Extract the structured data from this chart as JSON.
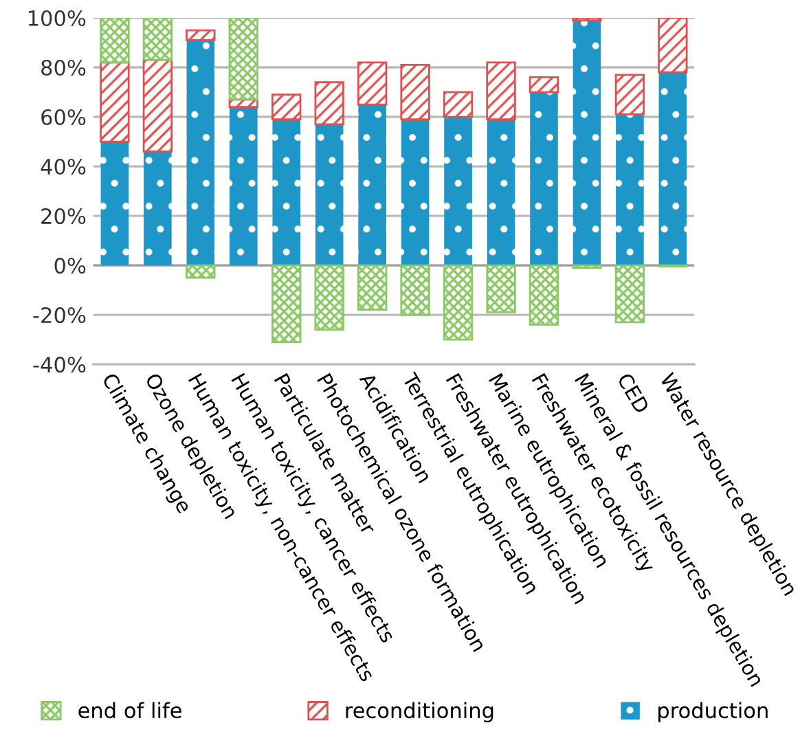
{
  "chart_data": {
    "type": "bar",
    "stacked": true,
    "categories": [
      "Climate change",
      "Ozone depletion",
      "Human toxicity, non-cancer effects",
      "Human toxicity, cancer effects",
      "Particulate matter",
      "Photochemical ozone formation",
      "Acidification",
      "Terrestrial eutrophication",
      "Freshwater eutrophication",
      "Marine eutrophication",
      "Freshwater ecotoxicity",
      "Mineral & fossil resources depletion",
      "CED",
      "Water resource depletion"
    ],
    "series": [
      {
        "name": "production",
        "color": "#1f96c8",
        "values": [
          50,
          46,
          91,
          64,
          59,
          57,
          65,
          59,
          60,
          59,
          70,
          99,
          61,
          78
        ]
      },
      {
        "name": "reconditioning",
        "color": "#e05050",
        "values": [
          32,
          37,
          4,
          3,
          10,
          17,
          17,
          22,
          10,
          23,
          6,
          1,
          16,
          22
        ]
      },
      {
        "name": "end of life",
        "color": "#8cc868",
        "values": [
          18,
          17,
          -5,
          33,
          -31,
          -26,
          -18,
          -20,
          -30,
          -19,
          -24,
          -1,
          -23,
          -0.5
        ]
      }
    ],
    "ylim": [
      -40,
      100
    ],
    "yticks": [
      {
        "value": -40,
        "label": "-40%"
      },
      {
        "value": -20,
        "label": "-20%"
      },
      {
        "value": 0,
        "label": "0%"
      },
      {
        "value": 20,
        "label": "20%"
      },
      {
        "value": 40,
        "label": "40%"
      },
      {
        "value": 60,
        "label": "60%"
      },
      {
        "value": 80,
        "label": "80%"
      },
      {
        "value": 100,
        "label": "100%"
      }
    ],
    "grid": "y",
    "legend": "bottom"
  }
}
